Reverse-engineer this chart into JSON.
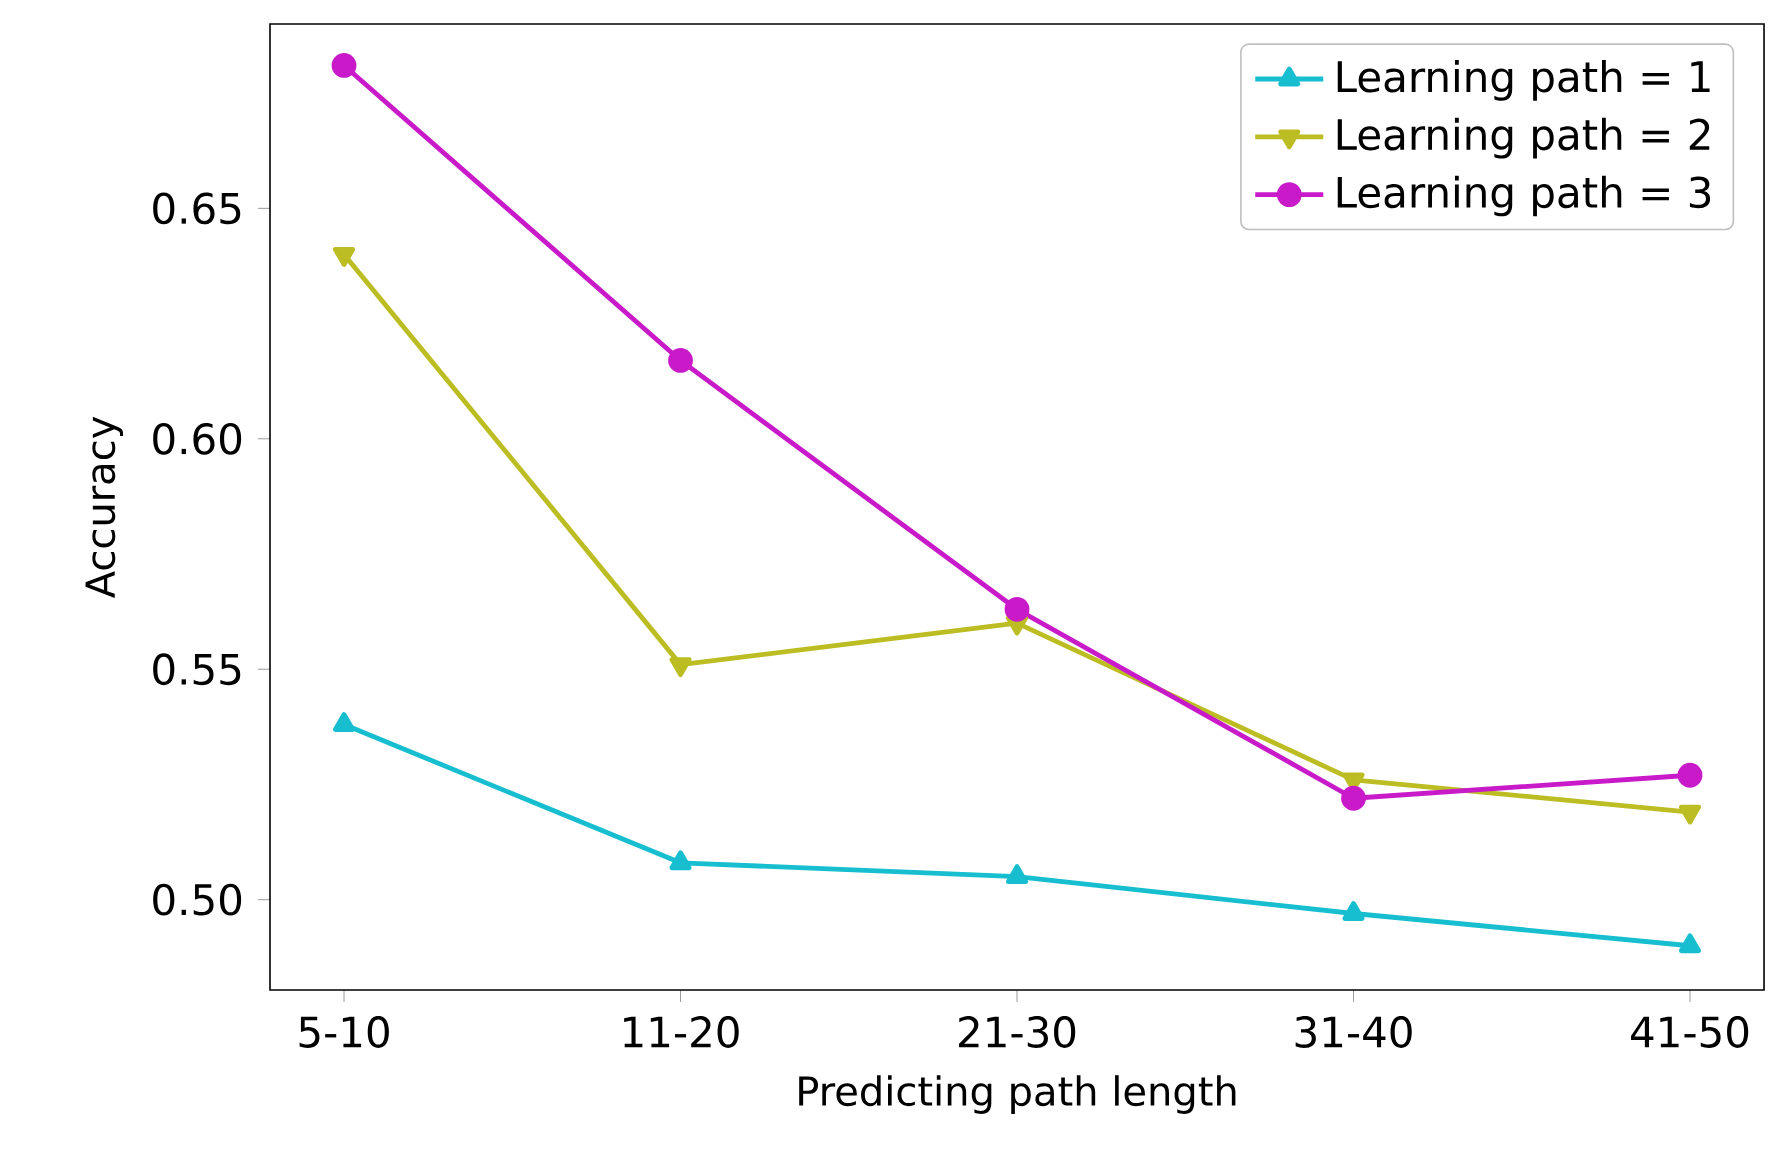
{
  "chart_data": {
    "type": "line",
    "xlabel": "Predicting path length",
    "ylabel": "Accuracy",
    "categories": [
      "5-10",
      "11-20",
      "21-30",
      "31-40",
      "41-50"
    ],
    "series": [
      {
        "name": "Learning path = 1",
        "color": "#17becf",
        "marker": "triangle",
        "values": [
          0.538,
          0.508,
          0.505,
          0.497,
          0.49
        ]
      },
      {
        "name": "Learning path = 2",
        "color": "#bcbd22",
        "marker": "triangle down",
        "values": [
          0.64,
          0.551,
          0.56,
          0.526,
          0.519
        ]
      },
      {
        "name": "Learning path = 3",
        "color": "#c91ac9",
        "marker": "circle",
        "values": [
          0.681,
          0.617,
          0.563,
          0.522,
          0.527
        ]
      }
    ],
    "ylim": [
      0.4804,
      0.69
    ],
    "yticks": [
      {
        "value": 0.5,
        "label": "0.50"
      },
      {
        "value": 0.55,
        "label": "0.55"
      },
      {
        "value": 0.6,
        "label": "0.60"
      },
      {
        "value": 0.65,
        "label": "0.65"
      }
    ],
    "legend": "top right",
    "grid": false,
    "line_style": "solid"
  }
}
